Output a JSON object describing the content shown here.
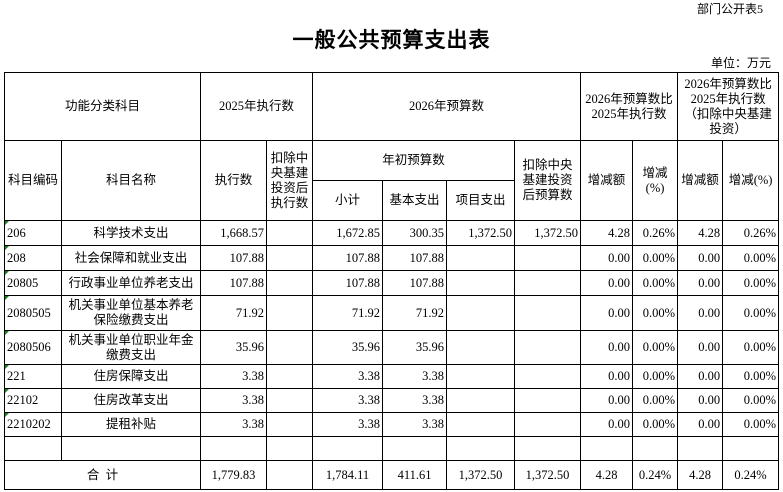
{
  "form_no": "部门公开表5",
  "title": "一般公共预算支出表",
  "unit": "单位：万元",
  "header": {
    "func_class": "功能分类科目",
    "exec_2025": "2025年执行数",
    "budget_2026": "2026年预算数",
    "cmp_exec": "2026年预算数比2025年执行数",
    "cmp_exec_excl": "2026年预算数比2025年执行数（扣除中央基建投资）",
    "code": "科目编码",
    "name": "科目名称",
    "exec": "执行数",
    "exec_excl": "扣除中央基建投资后执行数",
    "initial_budget": "年初预算数",
    "budget_excl": "扣除中央基建投资后预算数",
    "change_amt": "增减额",
    "change_pct": "增减(%)",
    "change_amt2": "增减额",
    "change_pct2": "增减(%)",
    "subtotal": "小计",
    "basic": "基本支出",
    "project": "项目支出"
  },
  "rows": [
    {
      "code": "206",
      "name": "科学技术支出",
      "exec": "1,668.57",
      "exec_excl": "",
      "subtotal": "1,672.85",
      "basic": "300.35",
      "project": "1,372.50",
      "budget_excl": "1,372.50",
      "chg": "4.28",
      "pct": "0.26%",
      "chg2": "4.28",
      "pct2": "0.26%"
    },
    {
      "code": "208",
      "name": "社会保障和就业支出",
      "exec": "107.88",
      "exec_excl": "",
      "subtotal": "107.88",
      "basic": "107.88",
      "project": "",
      "budget_excl": "",
      "chg": "0.00",
      "pct": "0.00%",
      "chg2": "0.00",
      "pct2": "0.00%"
    },
    {
      "code": "20805",
      "name": "行政事业单位养老支出",
      "exec": "107.88",
      "exec_excl": "",
      "subtotal": "107.88",
      "basic": "107.88",
      "project": "",
      "budget_excl": "",
      "chg": "0.00",
      "pct": "0.00%",
      "chg2": "0.00",
      "pct2": "0.00%"
    },
    {
      "code": "2080505",
      "name": "机关事业单位基本养老保险缴费支出",
      "exec": "71.92",
      "exec_excl": "",
      "subtotal": "71.92",
      "basic": "71.92",
      "project": "",
      "budget_excl": "",
      "chg": "0.00",
      "pct": "0.00%",
      "chg2": "0.00",
      "pct2": "0.00%"
    },
    {
      "code": "2080506",
      "name": "机关事业单位职业年金缴费支出",
      "exec": "35.96",
      "exec_excl": "",
      "subtotal": "35.96",
      "basic": "35.96",
      "project": "",
      "budget_excl": "",
      "chg": "0.00",
      "pct": "0.00%",
      "chg2": "0.00",
      "pct2": "0.00%"
    },
    {
      "code": "221",
      "name": "住房保障支出",
      "exec": "3.38",
      "exec_excl": "",
      "subtotal": "3.38",
      "basic": "3.38",
      "project": "",
      "budget_excl": "",
      "chg": "0.00",
      "pct": "0.00%",
      "chg2": "0.00",
      "pct2": "0.00%"
    },
    {
      "code": "22102",
      "name": "住房改革支出",
      "exec": "3.38",
      "exec_excl": "",
      "subtotal": "3.38",
      "basic": "3.38",
      "project": "",
      "budget_excl": "",
      "chg": "0.00",
      "pct": "0.00%",
      "chg2": "0.00",
      "pct2": "0.00%"
    },
    {
      "code": "2210202",
      "name": "提租补贴",
      "exec": "3.38",
      "exec_excl": "",
      "subtotal": "3.38",
      "basic": "3.38",
      "project": "",
      "budget_excl": "",
      "chg": "0.00",
      "pct": "0.00%",
      "chg2": "0.00",
      "pct2": "0.00%"
    }
  ],
  "total": {
    "label": "合  计",
    "exec": "1,779.83",
    "exec_excl": "",
    "subtotal": "1,784.11",
    "basic": "411.61",
    "project": "1,372.50",
    "budget_excl": "1,372.50",
    "chg": "4.28",
    "pct": "0.24%",
    "chg2": "4.28",
    "pct2": "0.24%"
  }
}
